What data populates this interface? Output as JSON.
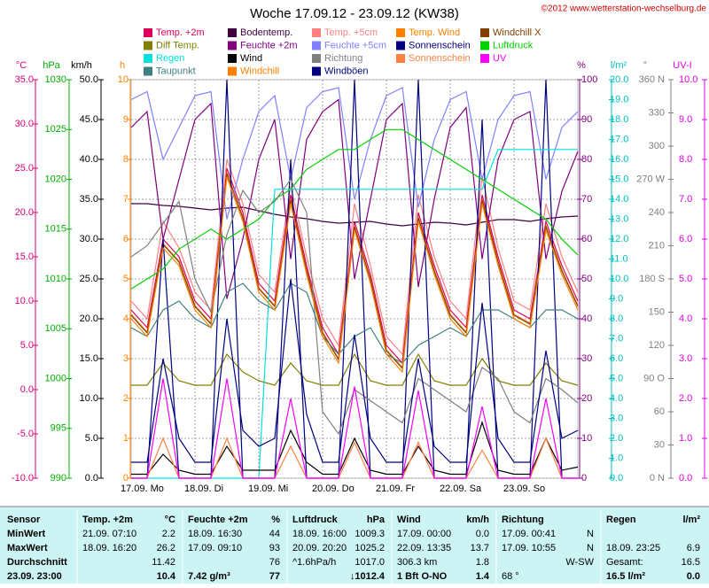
{
  "chart_data": {
    "type": "line",
    "title": "Woche 17.09.12 - 23.09.12 (KW38)",
    "copyright": "©2012 www.wetterstation-wechselburg.de",
    "x_labels": [
      "17.09. Mo",
      "18.09. Di",
      "19.09. Mi",
      "20.09. Do",
      "21.09. Fr",
      "22.09. Sa",
      "23.09. So"
    ],
    "grid": true,
    "axes": {
      "temp": {
        "unit": "°C",
        "color": "#e0007a",
        "lim": [
          -10,
          35
        ],
        "ticks": [
          {
            "value": -10,
            "label": "-10.0"
          },
          {
            "value": -5,
            "label": "-5.0"
          },
          {
            "value": 0,
            "label": "0.0"
          },
          {
            "value": 5,
            "label": "5.0"
          },
          {
            "value": 10,
            "label": "10.0"
          },
          {
            "value": 15,
            "label": "15.0"
          },
          {
            "value": 20,
            "label": "20.0"
          },
          {
            "value": 25,
            "label": "25.0"
          },
          {
            "value": 30,
            "label": "30.0"
          },
          {
            "value": 35,
            "label": "35.0"
          }
        ]
      },
      "hpa": {
        "unit": "hPa",
        "color": "#00b000",
        "lim": [
          990,
          1030
        ],
        "ticks": [
          990,
          995,
          1000,
          1005,
          1010,
          1015,
          1020,
          1025,
          1030
        ]
      },
      "kmh": {
        "unit": "km/h",
        "color": "#000000",
        "lim": [
          0,
          50
        ],
        "ticks": [
          {
            "value": 0,
            "label": "0.0"
          },
          {
            "value": 5,
            "label": "5.0"
          },
          {
            "value": 10,
            "label": "10.0"
          },
          {
            "value": 15,
            "label": "15.0"
          },
          {
            "value": 20,
            "label": "20.0"
          },
          {
            "value": 25,
            "label": "25.0"
          },
          {
            "value": 30,
            "label": "30.0"
          },
          {
            "value": 35,
            "label": "35.0"
          },
          {
            "value": 40,
            "label": "40.0"
          },
          {
            "value": 45,
            "label": "45.0"
          },
          {
            "value": 50,
            "label": "50.0"
          }
        ]
      },
      "h": {
        "unit": "h",
        "color": "#ff8000",
        "lim": [
          0,
          10
        ],
        "ticks": [
          0,
          1,
          2,
          3,
          4,
          5,
          6,
          7,
          8,
          9,
          10
        ]
      },
      "pct": {
        "unit": "%",
        "color": "#800080",
        "lim": [
          0,
          100
        ],
        "ticks": [
          0,
          10,
          20,
          30,
          40,
          50,
          60,
          70,
          80,
          90,
          100
        ]
      },
      "rain": {
        "unit": "l/m²",
        "color": "#00c0c0",
        "lim": [
          0,
          20
        ],
        "ticks": [
          {
            "value": 0,
            "label": "0.0"
          },
          {
            "value": 1,
            "label": "1.0"
          },
          {
            "value": 2,
            "label": "2.0"
          },
          {
            "value": 3,
            "label": "3.0"
          },
          {
            "value": 4,
            "label": "4.0"
          },
          {
            "value": 5,
            "label": "5.0"
          },
          {
            "value": 6,
            "label": "6.0"
          },
          {
            "value": 7,
            "label": "7.0"
          },
          {
            "value": 8,
            "label": "8.0"
          },
          {
            "value": 9,
            "label": "9.0"
          },
          {
            "value": 10,
            "label": "10.0"
          },
          {
            "value": 11,
            "label": "11.0"
          },
          {
            "value": 12,
            "label": "12.0"
          },
          {
            "value": 13,
            "label": "13.0"
          },
          {
            "value": 14,
            "label": "14.0"
          },
          {
            "value": 15,
            "label": "15.0"
          },
          {
            "value": 16,
            "label": "16.0"
          },
          {
            "value": 17,
            "label": "17.0"
          },
          {
            "value": 18,
            "label": "18.0"
          },
          {
            "value": 19,
            "label": "19.0"
          },
          {
            "value": 20,
            "label": "20.0"
          }
        ]
      },
      "deg": {
        "unit": "°",
        "color": "#808080",
        "lim": [
          0,
          360
        ],
        "ticks": [
          {
            "value": 0,
            "label": "0 N"
          },
          30,
          60,
          {
            "value": 90,
            "label": "90 O"
          },
          120,
          150,
          {
            "value": 180,
            "label": "180 S"
          },
          210,
          240,
          {
            "value": 270,
            "label": "270 W"
          },
          300,
          330,
          {
            "value": 360,
            "label": "360 N"
          }
        ]
      },
      "uv": {
        "unit": "UV-I",
        "color": "#e000e0",
        "lim": [
          0,
          10
        ],
        "ticks": [
          {
            "value": 0,
            "label": "0.0"
          },
          {
            "value": 1,
            "label": "1.0"
          },
          {
            "value": 2,
            "label": "2.0"
          },
          {
            "value": 3,
            "label": "3.0"
          },
          {
            "value": 4,
            "label": "4.0"
          },
          {
            "value": 5,
            "label": "5.0"
          },
          {
            "value": 6,
            "label": "6.0"
          },
          {
            "value": 7,
            "label": "7.0"
          },
          {
            "value": 8,
            "label": "8.0"
          },
          {
            "value": 9,
            "label": "9.0"
          },
          {
            "value": 10,
            "label": "10.0"
          }
        ]
      }
    },
    "series": [
      {
        "name": "Temp. +2m",
        "color": "#e0005a",
        "axis": "temp",
        "values": [
          9,
          7,
          17,
          15,
          10,
          8,
          25,
          20,
          12,
          10,
          22,
          14,
          7,
          4,
          19,
          13,
          5,
          3,
          20,
          14,
          9,
          7,
          22,
          15,
          9,
          8,
          19,
          14,
          10
        ]
      },
      {
        "name": "Bodentemp.",
        "color": "#400040",
        "axis": "temp",
        "values": [
          21,
          21,
          20.8,
          20.7,
          20.5,
          20.3,
          20.5,
          20.6,
          20.2,
          19.8,
          19.5,
          19.3,
          19,
          18.8,
          18.9,
          19,
          18.7,
          18.5,
          18.7,
          18.9,
          18.8,
          18.6,
          18.9,
          19.2,
          19.2,
          19,
          19.3,
          19.5,
          19.6
        ]
      },
      {
        "name": "Temp. +5cm",
        "color": "#ff8080",
        "axis": "temp",
        "values": [
          10,
          8,
          19,
          16,
          11,
          9,
          26,
          21,
          13,
          11,
          23,
          15,
          8,
          5,
          21,
          14,
          6,
          4,
          22,
          15,
          10,
          8,
          24,
          16,
          10,
          9,
          21,
          15,
          11
        ]
      },
      {
        "name": "Temp. Wind",
        "color": "#ff8000",
        "axis": "temp",
        "values": [
          8.5,
          6.5,
          16.5,
          14.5,
          9.5,
          7.5,
          24.5,
          19.5,
          11.5,
          9.5,
          21.5,
          13.5,
          6.5,
          3.5,
          18.5,
          12.5,
          4.5,
          2.5,
          19.5,
          13.5,
          8.5,
          6.5,
          21.5,
          14.5,
          8.5,
          7.5,
          18.5,
          13.5,
          9.5
        ]
      },
      {
        "name": "Windchill X",
        "color": "#804000",
        "axis": "temp",
        "values": [
          8.4,
          6.4,
          16.4,
          14.4,
          9.4,
          7.4,
          24.4,
          19.4,
          11.4,
          9.4,
          21.4,
          13.4,
          6.4,
          3.4,
          18.4,
          12.4,
          4.4,
          2.4,
          19.4,
          13.4,
          8.4,
          6.4,
          21.4,
          14.4,
          8.4,
          7.4,
          18.4,
          13.4,
          9.4
        ]
      },
      {
        "name": "Diff Temp.",
        "color": "#808000",
        "axis": "temp",
        "values": [
          0.5,
          0.5,
          3,
          1,
          0.5,
          0.5,
          4,
          2,
          1,
          0.5,
          3,
          1,
          0.5,
          0.5,
          4,
          1,
          0.5,
          0.5,
          4,
          1,
          0.5,
          0.5,
          3.5,
          1,
          0.5,
          0.5,
          3,
          1,
          0.5
        ]
      },
      {
        "name": "Feuchte +2m",
        "color": "#800080",
        "axis": "pct",
        "values": [
          88,
          92,
          60,
          75,
          90,
          94,
          45,
          60,
          80,
          90,
          55,
          85,
          92,
          95,
          50,
          70,
          90,
          94,
          48,
          70,
          88,
          93,
          55,
          80,
          90,
          92,
          55,
          72,
          82
        ]
      },
      {
        "name": "Feuchte +5cm",
        "color": "#8080ff",
        "axis": "pct",
        "values": [
          95,
          97,
          80,
          88,
          96,
          97,
          65,
          80,
          92,
          96,
          75,
          93,
          97,
          98,
          70,
          85,
          96,
          98,
          68,
          85,
          95,
          97,
          75,
          90,
          96,
          97,
          75,
          88,
          92
        ]
      },
      {
        "name": "Sonnenschein",
        "color": "#000080",
        "axis": "h",
        "values": [
          0,
          0,
          6,
          0,
          0,
          0,
          10,
          0,
          0,
          0,
          8,
          0,
          0,
          0,
          10,
          0,
          0,
          0,
          10,
          0,
          0,
          0,
          9,
          0,
          0,
          0,
          10,
          0,
          0
        ]
      },
      {
        "name": "Luftdruck",
        "color": "#00d000",
        "axis": "hpa",
        "values": [
          1009,
          1010,
          1011,
          1013,
          1014,
          1015,
          1014,
          1015,
          1016,
          1018,
          1019,
          1021,
          1022,
          1023,
          1023,
          1024,
          1025,
          1025,
          1024,
          1023,
          1022,
          1021,
          1020,
          1019,
          1018,
          1017,
          1016,
          1014,
          1012.4
        ]
      },
      {
        "name": "Regen",
        "color": "#00e0e0",
        "axis": "rain",
        "values": [
          0,
          0,
          0,
          0,
          0,
          0,
          0,
          0,
          0,
          14.5,
          14.5,
          14.5,
          14.5,
          14.5,
          14.5,
          14.5,
          14.5,
          14.5,
          14.5,
          14.5,
          14.5,
          14.5,
          14.5,
          16.5,
          16.5,
          16.5,
          16.5,
          16.5,
          16.5
        ]
      },
      {
        "name": "Wind",
        "color": "#000000",
        "axis": "kmh",
        "values": [
          0.5,
          0.5,
          3,
          1,
          0.5,
          0.5,
          4,
          1,
          1,
          1,
          6,
          2,
          0.5,
          0.5,
          5,
          1,
          0.5,
          0.5,
          4,
          1,
          0.5,
          0.5,
          7,
          1,
          0.5,
          0.5,
          5,
          1,
          1.4
        ]
      },
      {
        "name": "Richtung",
        "color": "#808080",
        "axis": "deg",
        "values": [
          200,
          210,
          230,
          250,
          180,
          150,
          220,
          260,
          240,
          250,
          270,
          240,
          60,
          40,
          80,
          70,
          60,
          50,
          90,
          80,
          70,
          60,
          100,
          90,
          60,
          50,
          90,
          80,
          68
        ]
      },
      {
        "name": "Sonnenschein",
        "color": "#ff8040",
        "axis": "h",
        "values": [
          0,
          0,
          1,
          0,
          0,
          0,
          1,
          0,
          0,
          0,
          0.8,
          0,
          0,
          0,
          0.9,
          0,
          0,
          0,
          0.9,
          0,
          0,
          0,
          0.7,
          0,
          0,
          0,
          1,
          0,
          0
        ]
      },
      {
        "name": "UV",
        "color": "#ff00ff",
        "axis": "uv",
        "values": [
          0,
          0,
          2.5,
          0,
          0,
          0,
          2.5,
          0,
          0,
          0,
          2,
          0,
          0,
          0,
          2.3,
          0,
          0,
          0,
          2.2,
          0,
          0,
          0,
          1.8,
          0,
          0,
          0,
          2,
          0,
          0
        ]
      },
      {
        "name": "Taupunkt",
        "color": "#408080",
        "axis": "temp",
        "values": [
          7,
          6,
          9,
          10,
          8,
          7,
          11,
          12,
          10,
          9,
          12,
          11,
          6,
          4,
          6,
          7,
          4,
          3,
          5,
          6,
          7,
          6,
          9,
          9,
          8,
          7,
          9,
          9,
          8
        ]
      },
      {
        "name": "Windchill",
        "color": "#ff8000",
        "axis": "temp",
        "values": [
          8,
          6,
          16,
          14,
          9,
          7,
          24,
          19,
          11,
          9,
          21,
          13,
          6,
          3,
          18,
          12,
          4,
          2,
          19,
          13,
          8,
          6,
          21,
          14,
          8,
          7,
          18,
          13,
          9
        ]
      },
      {
        "name": "Windböen",
        "color": "#000080",
        "axis": "kmh",
        "values": [
          2,
          2,
          15,
          5,
          2,
          2,
          20,
          6,
          4,
          5,
          25,
          8,
          2,
          2,
          18,
          5,
          2,
          2,
          15,
          4,
          2,
          2,
          22,
          5,
          2,
          2,
          16,
          5,
          6
        ]
      }
    ]
  },
  "table": {
    "headers": [
      {
        "l": "Sensor"
      },
      {
        "l": "Temp. +2m",
        "r": "°C"
      },
      {
        "l": "Feuchte +2m",
        "r": "%"
      },
      {
        "l": "Luftdruck",
        "r": "hPa"
      },
      {
        "l": "Wind",
        "r": "km/h"
      },
      {
        "l": "Richtung"
      },
      {
        "l": "Regen",
        "r": "l/m²"
      }
    ],
    "rows": [
      [
        {
          "l": "MinWert"
        },
        {
          "l": "21.09. 07:10",
          "r": "2.2"
        },
        {
          "l": "18.09. 16:30",
          "r": "44"
        },
        {
          "l": "18.09. 16:00",
          "r": "1009.3"
        },
        {
          "l": "17.09. 00:00",
          "r": "0.0"
        },
        {
          "l": "17.09. 00:41",
          "r": "N"
        },
        {}
      ],
      [
        {
          "l": "MaxWert"
        },
        {
          "l": "18.09. 16:20",
          "r": "26.2"
        },
        {
          "l": "17.09. 09:10",
          "r": "93"
        },
        {
          "l": "20.09. 20:20",
          "r": "1025.2"
        },
        {
          "l": "22.09. 13:35",
          "r": "13.7"
        },
        {
          "l": "17.09. 10:55",
          "r": "N"
        },
        {
          "l": "18.09. 23:25",
          "r": "6.9"
        }
      ],
      [
        {
          "l": "Durchschnitt"
        },
        {
          "r": "11.42"
        },
        {
          "r": "76"
        },
        {
          "l": "^1.6hPa/h",
          "r": "1017.0"
        },
        {
          "l": "306.3 km",
          "r": "1.8"
        },
        {
          "r": "W-SW"
        },
        {
          "l": "Gesamt:",
          "r": "16.5"
        }
      ],
      [
        {
          "l": "23.09. 23:00"
        },
        {
          "r": "10.4"
        },
        {
          "l": "7.42 g/m³",
          "r": "77"
        },
        {
          "r": "↓1012.4"
        },
        {
          "l": "1 Bft O-NO",
          "r": "1.4"
        },
        {
          "l": "68 °"
        },
        {
          "l": "16.5 l/m²",
          "r": "0.0"
        }
      ]
    ]
  }
}
